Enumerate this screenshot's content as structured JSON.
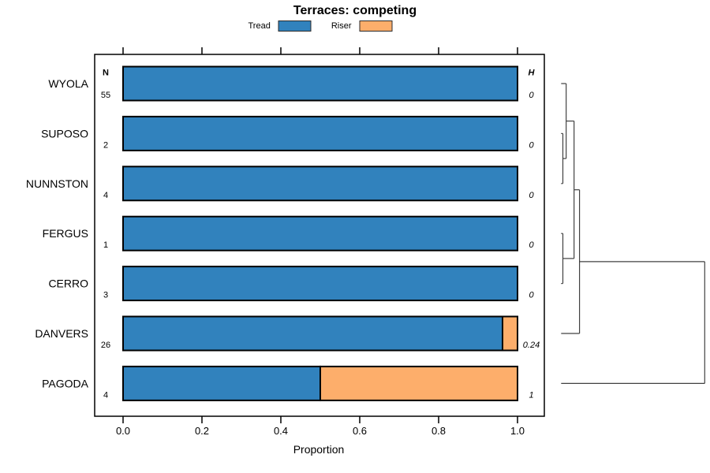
{
  "chart_data": {
    "type": "bar",
    "orientation": "horizontal",
    "stacked": true,
    "title": "Terraces: competing",
    "xlabel": "Proportion",
    "xlim": [
      0,
      1
    ],
    "grid": false,
    "legend_position": "top",
    "x_ticks": [
      {
        "value": 0.0,
        "label": "0.0"
      },
      {
        "value": 0.2,
        "label": "0.2"
      },
      {
        "value": 0.4,
        "label": "0.4"
      },
      {
        "value": 0.6,
        "label": "0.6"
      },
      {
        "value": 0.8,
        "label": "0.8"
      },
      {
        "value": 1.0,
        "label": "1.0"
      }
    ],
    "categories": [
      "WYOLA",
      "SUPOSO",
      "NUNNSTON",
      "FERGUS",
      "CERRO",
      "DANVERS",
      "PAGODA"
    ],
    "legend": [
      {
        "label": "Tread",
        "color": "#3182bd"
      },
      {
        "label": "Riser",
        "color": "#fdae6b"
      }
    ],
    "series": [
      {
        "name": "Tread",
        "values": [
          1,
          1,
          1,
          1,
          1,
          0.962,
          0.5
        ]
      },
      {
        "name": "Riser",
        "values": [
          0,
          0,
          0,
          0,
          0,
          0.038,
          0.5
        ]
      }
    ],
    "columns": {
      "n_header": "N",
      "h_header": "H"
    },
    "n_values": [
      "55",
      "2",
      "4",
      "1",
      "3",
      "26",
      "4"
    ],
    "h_values": [
      "0",
      "0",
      "0",
      "0",
      "0",
      "0.24",
      "1"
    ],
    "dendrogram": {
      "side": "right",
      "merges": [
        {
          "a": "SUPOSO",
          "b": "NUNNSTON",
          "height": 0.012
        },
        {
          "a": "WYOLA",
          "b": "#0",
          "height": 0.035
        },
        {
          "a": "FERGUS",
          "b": "CERRO",
          "height": 0.012
        },
        {
          "a": "#1",
          "b": "#2",
          "height": 0.09
        },
        {
          "a": "#3",
          "b": "DANVERS",
          "height": 0.128
        },
        {
          "a": "#4",
          "b": "PAGODA",
          "height": 1.0
        }
      ]
    }
  }
}
